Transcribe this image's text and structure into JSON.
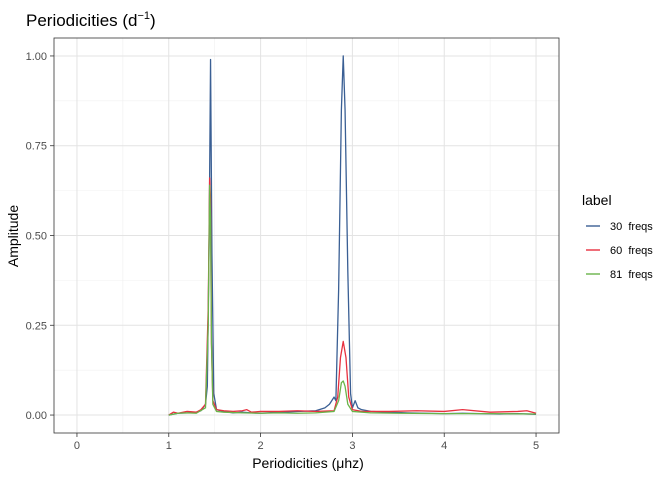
{
  "chart_data": {
    "type": "line",
    "title": "Periodicities (d",
    "title_superscript": "−1",
    "title_suffix": ")",
    "xlabel": "Periodicities (μhz)",
    "ylabel": "Amplitude",
    "xlim": [
      -0.25,
      5.25
    ],
    "ylim": [
      -0.05,
      1.05
    ],
    "x_ticks": [
      0,
      1,
      2,
      3,
      4,
      5
    ],
    "x_tick_labels": [
      "0",
      "1",
      "2",
      "3",
      "4",
      "5"
    ],
    "y_ticks": [
      0,
      0.25,
      0.5,
      0.75,
      1
    ],
    "y_tick_labels": [
      "0.00",
      "0.25",
      "0.50",
      "0.75",
      "1.00"
    ],
    "grid": true,
    "legend": {
      "title": "label",
      "placement": "right"
    },
    "series": [
      {
        "name": "30  freqs",
        "color": "#3a5f94",
        "x": [
          1.0,
          1.1,
          1.2,
          1.3,
          1.35,
          1.4,
          1.42,
          1.44,
          1.455,
          1.47,
          1.49,
          1.52,
          1.6,
          1.7,
          1.8,
          1.9,
          2.0,
          2.2,
          2.4,
          2.6,
          2.7,
          2.75,
          2.8,
          2.82,
          2.85,
          2.88,
          2.9,
          2.92,
          2.95,
          2.98,
          3.0,
          3.03,
          3.06,
          3.1,
          3.2,
          3.4,
          3.6,
          3.8,
          4.0,
          4.2,
          4.4,
          4.6,
          4.8,
          5.0
        ],
        "y": [
          0.0,
          0.005,
          0.006,
          0.008,
          0.012,
          0.03,
          0.08,
          0.5,
          0.99,
          0.45,
          0.06,
          0.015,
          0.01,
          0.006,
          0.008,
          0.006,
          0.005,
          0.008,
          0.01,
          0.012,
          0.02,
          0.03,
          0.05,
          0.04,
          0.35,
          0.85,
          1.0,
          0.85,
          0.4,
          0.06,
          0.02,
          0.04,
          0.02,
          0.015,
          0.01,
          0.008,
          0.006,
          0.005,
          0.004,
          0.005,
          0.004,
          0.003,
          0.004,
          0.002
        ]
      },
      {
        "name": "60  freqs",
        "color": "#e8303f",
        "x": [
          1.0,
          1.05,
          1.1,
          1.2,
          1.3,
          1.35,
          1.4,
          1.43,
          1.445,
          1.455,
          1.465,
          1.48,
          1.52,
          1.6,
          1.7,
          1.8,
          1.85,
          1.9,
          2.0,
          2.2,
          2.4,
          2.6,
          2.8,
          2.84,
          2.87,
          2.9,
          2.93,
          2.96,
          3.0,
          3.1,
          3.4,
          3.7,
          4.0,
          4.2,
          4.5,
          4.8,
          4.9,
          5.0
        ],
        "y": [
          0.0,
          0.008,
          0.005,
          0.01,
          0.008,
          0.015,
          0.03,
          0.3,
          0.66,
          0.6,
          0.2,
          0.04,
          0.015,
          0.012,
          0.01,
          0.012,
          0.015,
          0.008,
          0.01,
          0.01,
          0.012,
          0.01,
          0.012,
          0.05,
          0.16,
          0.205,
          0.16,
          0.05,
          0.015,
          0.01,
          0.01,
          0.012,
          0.01,
          0.015,
          0.008,
          0.01,
          0.012,
          0.005
        ]
      },
      {
        "name": "81  freqs",
        "color": "#6ab44a",
        "x": [
          1.0,
          1.1,
          1.2,
          1.3,
          1.4,
          1.43,
          1.445,
          1.455,
          1.465,
          1.48,
          1.52,
          1.6,
          1.8,
          2.0,
          2.2,
          2.4,
          2.6,
          2.8,
          2.85,
          2.88,
          2.9,
          2.92,
          2.95,
          3.0,
          3.2,
          3.5,
          4.0,
          4.5,
          5.0
        ],
        "y": [
          0.0,
          0.005,
          0.006,
          0.005,
          0.02,
          0.25,
          0.64,
          0.55,
          0.2,
          0.03,
          0.01,
          0.008,
          0.006,
          0.005,
          0.006,
          0.005,
          0.006,
          0.01,
          0.04,
          0.09,
          0.095,
          0.08,
          0.03,
          0.01,
          0.006,
          0.005,
          0.004,
          0.004,
          0.003
        ]
      }
    ]
  }
}
